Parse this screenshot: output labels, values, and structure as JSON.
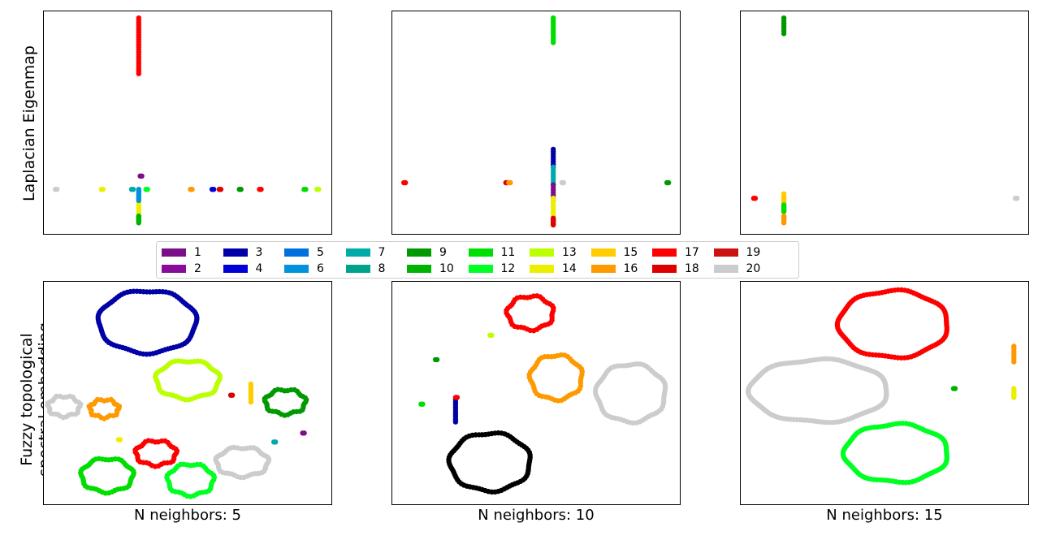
{
  "row_labels": {
    "top": "Laplacian Eigenmap",
    "bottom_line1": "Fuzzy topological",
    "bottom_line2": "spectral embedding"
  },
  "column_labels": [
    "N neighbors: 5",
    "N neighbors: 10",
    "N neighbors: 15"
  ],
  "legend": [
    {
      "label": "1",
      "color": "#7b0f8a"
    },
    {
      "label": "2",
      "color": "#8a0a9a"
    },
    {
      "label": "3",
      "color": "#0000a6"
    },
    {
      "label": "4",
      "color": "#0000d9"
    },
    {
      "label": "5",
      "color": "#0070dd"
    },
    {
      "label": "6",
      "color": "#0092dd"
    },
    {
      "label": "7",
      "color": "#00aaaa"
    },
    {
      "label": "8",
      "color": "#00a38a"
    },
    {
      "label": "9",
      "color": "#009900"
    },
    {
      "label": "10",
      "color": "#00b300"
    },
    {
      "label": "11",
      "color": "#00dd00"
    },
    {
      "label": "12",
      "color": "#00ff22"
    },
    {
      "label": "13",
      "color": "#bbff00"
    },
    {
      "label": "14",
      "color": "#eeee00"
    },
    {
      "label": "15",
      "color": "#ffcc00"
    },
    {
      "label": "16",
      "color": "#ff9900"
    },
    {
      "label": "17",
      "color": "#ff0000"
    },
    {
      "label": "18",
      "color": "#dd0000"
    },
    {
      "label": "19",
      "color": "#cc1111"
    },
    {
      "label": "20",
      "color": "#cccccc"
    }
  ],
  "chart_data": [
    {
      "type": "scatter",
      "row": "Laplacian Eigenmap",
      "xlabel": "",
      "ylabel": "Laplacian Eigenmap",
      "grid": false,
      "xlim": [
        0,
        1
      ],
      "ylim": [
        0,
        1
      ],
      "series": [
        {
          "class": 17,
          "shapes": [
            {
              "kind": "vline",
              "x": 0.33,
              "y0": 0.72,
              "y1": 0.97
            },
            {
              "kind": "point",
              "x": 0.75,
              "y": 0.2
            }
          ]
        },
        {
          "class": 20,
          "shapes": [
            {
              "kind": "point",
              "x": 0.04,
              "y": 0.2
            }
          ]
        },
        {
          "class": 14,
          "shapes": [
            {
              "kind": "point",
              "x": 0.2,
              "y": 0.2
            },
            {
              "kind": "vline",
              "x": 0.33,
              "y0": 0.06,
              "y1": 0.14
            }
          ]
        },
        {
          "class": 7,
          "shapes": [
            {
              "kind": "point",
              "x": 0.305,
              "y": 0.2
            }
          ]
        },
        {
          "class": 1,
          "shapes": [
            {
              "kind": "point",
              "x": 0.335,
              "y": 0.26
            }
          ]
        },
        {
          "class": 12,
          "shapes": [
            {
              "kind": "point",
              "x": 0.355,
              "y": 0.2
            }
          ]
        },
        {
          "class": 6,
          "shapes": [
            {
              "kind": "vline",
              "x": 0.33,
              "y0": 0.15,
              "y1": 0.2
            }
          ]
        },
        {
          "class": 10,
          "shapes": [
            {
              "kind": "vline",
              "x": 0.33,
              "y0": 0.05,
              "y1": 0.08
            }
          ]
        },
        {
          "class": 16,
          "shapes": [
            {
              "kind": "point",
              "x": 0.51,
              "y": 0.2
            }
          ]
        },
        {
          "class": 4,
          "shapes": [
            {
              "kind": "point",
              "x": 0.585,
              "y": 0.2
            }
          ]
        },
        {
          "class": 18,
          "shapes": [
            {
              "kind": "point",
              "x": 0.61,
              "y": 0.2
            }
          ]
        },
        {
          "class": 9,
          "shapes": [
            {
              "kind": "point",
              "x": 0.68,
              "y": 0.2
            }
          ]
        },
        {
          "class": 11,
          "shapes": [
            {
              "kind": "point",
              "x": 0.905,
              "y": 0.2
            }
          ]
        },
        {
          "class": 13,
          "shapes": [
            {
              "kind": "point",
              "x": 0.95,
              "y": 0.2
            }
          ]
        }
      ]
    },
    {
      "type": "scatter",
      "row": "Laplacian Eigenmap",
      "xlabel": "",
      "ylabel": "",
      "grid": false,
      "xlim": [
        0,
        1
      ],
      "ylim": [
        0,
        1
      ],
      "series": [
        {
          "class": 11,
          "shapes": [
            {
              "kind": "vline",
              "x": 0.56,
              "y0": 0.86,
              "y1": 0.97
            }
          ]
        },
        {
          "class": 3,
          "shapes": [
            {
              "kind": "vline",
              "x": 0.56,
              "y0": 0.3,
              "y1": 0.38
            }
          ]
        },
        {
          "class": 7,
          "shapes": [
            {
              "kind": "vline",
              "x": 0.56,
              "y0": 0.22,
              "y1": 0.3
            }
          ]
        },
        {
          "class": 1,
          "shapes": [
            {
              "kind": "vline",
              "x": 0.56,
              "y0": 0.15,
              "y1": 0.22
            }
          ]
        },
        {
          "class": 14,
          "shapes": [
            {
              "kind": "vline",
              "x": 0.56,
              "y0": 0.08,
              "y1": 0.16
            }
          ]
        },
        {
          "class": 18,
          "shapes": [
            {
              "kind": "vline",
              "x": 0.56,
              "y0": 0.04,
              "y1": 0.07
            }
          ]
        },
        {
          "class": 17,
          "shapes": [
            {
              "kind": "point",
              "x": 0.04,
              "y": 0.23
            }
          ]
        },
        {
          "class": 18,
          "shapes": [
            {
              "kind": "point",
              "x": 0.395,
              "y": 0.23
            }
          ]
        },
        {
          "class": 16,
          "shapes": [
            {
              "kind": "point",
              "x": 0.405,
              "y": 0.23
            }
          ]
        },
        {
          "class": 20,
          "shapes": [
            {
              "kind": "point",
              "x": 0.59,
              "y": 0.23
            }
          ]
        },
        {
          "class": 9,
          "shapes": [
            {
              "kind": "point",
              "x": 0.955,
              "y": 0.23
            }
          ]
        }
      ]
    },
    {
      "type": "scatter",
      "row": "Laplacian Eigenmap",
      "xlabel": "",
      "ylabel": "",
      "grid": false,
      "xlim": [
        0,
        1
      ],
      "ylim": [
        0,
        1
      ],
      "series": [
        {
          "class": 9,
          "shapes": [
            {
              "kind": "vline",
              "x": 0.15,
              "y0": 0.9,
              "y1": 0.97
            }
          ]
        },
        {
          "class": 17,
          "shapes": [
            {
              "kind": "point",
              "x": 0.045,
              "y": 0.16
            }
          ]
        },
        {
          "class": 15,
          "shapes": [
            {
              "kind": "vline",
              "x": 0.15,
              "y0": 0.13,
              "y1": 0.18
            }
          ]
        },
        {
          "class": 11,
          "shapes": [
            {
              "kind": "vline",
              "x": 0.15,
              "y0": 0.1,
              "y1": 0.13
            }
          ]
        },
        {
          "class": 16,
          "shapes": [
            {
              "kind": "vline",
              "x": 0.15,
              "y0": 0.05,
              "y1": 0.08
            }
          ]
        },
        {
          "class": 20,
          "shapes": [
            {
              "kind": "point",
              "x": 0.955,
              "y": 0.16
            }
          ]
        }
      ]
    },
    {
      "type": "scatter",
      "row": "Fuzzy topological spectral embedding",
      "xlabel": "N neighbors: 5",
      "ylabel": "Fuzzy topological spectral embedding",
      "grid": false,
      "xlim": [
        0,
        1
      ],
      "ylim": [
        0,
        1
      ],
      "series": [
        {
          "class": 3,
          "shapes": [
            {
              "kind": "ring",
              "x": 0.36,
              "y": 0.82,
              "rx": 0.17,
              "ry": 0.14
            }
          ]
        },
        {
          "class": 13,
          "shapes": [
            {
              "kind": "ring",
              "x": 0.5,
              "y": 0.56,
              "rx": 0.11,
              "ry": 0.085
            }
          ]
        },
        {
          "class": 9,
          "shapes": [
            {
              "kind": "ring",
              "x": 0.84,
              "y": 0.46,
              "rx": 0.07,
              "ry": 0.055
            }
          ]
        },
        {
          "class": 18,
          "shapes": [
            {
              "kind": "point",
              "x": 0.65,
              "y": 0.49
            }
          ]
        },
        {
          "class": 15,
          "shapes": [
            {
              "kind": "vline",
              "x": 0.72,
              "y0": 0.46,
              "y1": 0.54
            }
          ]
        },
        {
          "class": 1,
          "shapes": [
            {
              "kind": "point",
              "x": 0.9,
              "y": 0.32
            }
          ]
        },
        {
          "class": 7,
          "shapes": [
            {
              "kind": "point",
              "x": 0.8,
              "y": 0.28
            }
          ]
        },
        {
          "class": 20,
          "shapes": [
            {
              "kind": "ring",
              "x": 0.07,
              "y": 0.44,
              "rx": 0.055,
              "ry": 0.045
            }
          ]
        },
        {
          "class": 16,
          "shapes": [
            {
              "kind": "ring",
              "x": 0.21,
              "y": 0.43,
              "rx": 0.05,
              "ry": 0.04
            }
          ]
        },
        {
          "class": 14,
          "shapes": [
            {
              "kind": "point",
              "x": 0.26,
              "y": 0.29
            }
          ]
        },
        {
          "class": 17,
          "shapes": [
            {
              "kind": "ring",
              "x": 0.39,
              "y": 0.23,
              "rx": 0.07,
              "ry": 0.055
            }
          ]
        },
        {
          "class": 20,
          "shapes": [
            {
              "kind": "ring",
              "x": 0.69,
              "y": 0.19,
              "rx": 0.09,
              "ry": 0.065
            }
          ]
        },
        {
          "class": 11,
          "shapes": [
            {
              "kind": "ring",
              "x": 0.22,
              "y": 0.13,
              "rx": 0.09,
              "ry": 0.075
            }
          ]
        },
        {
          "class": 12,
          "shapes": [
            {
              "kind": "ring",
              "x": 0.51,
              "y": 0.11,
              "rx": 0.08,
              "ry": 0.07
            }
          ]
        }
      ]
    },
    {
      "type": "scatter",
      "row": "Fuzzy topological spectral embedding",
      "xlabel": "N neighbors: 10",
      "ylabel": "",
      "grid": false,
      "xlim": [
        0,
        1
      ],
      "ylim": [
        0,
        1
      ],
      "series": [
        {
          "class": 17,
          "shapes": [
            {
              "kind": "ring",
              "x": 0.48,
              "y": 0.86,
              "rx": 0.08,
              "ry": 0.075
            }
          ]
        },
        {
          "class": 13,
          "shapes": [
            {
              "kind": "point",
              "x": 0.34,
              "y": 0.76
            }
          ]
        },
        {
          "class": 9,
          "shapes": [
            {
              "kind": "point",
              "x": 0.15,
              "y": 0.65
            }
          ]
        },
        {
          "class": 16,
          "shapes": [
            {
              "kind": "ring",
              "x": 0.57,
              "y": 0.57,
              "rx": 0.09,
              "ry": 0.1
            }
          ]
        },
        {
          "class": 20,
          "shapes": [
            {
              "kind": "ring",
              "x": 0.83,
              "y": 0.5,
              "rx": 0.12,
              "ry": 0.13
            }
          ]
        },
        {
          "class": 11,
          "shapes": [
            {
              "kind": "point",
              "x": 0.1,
              "y": 0.45
            }
          ]
        },
        {
          "class": 3,
          "shapes": [
            {
              "kind": "vline",
              "x": 0.22,
              "y0": 0.37,
              "y1": 0.47
            }
          ]
        },
        {
          "class": 17,
          "shapes": [
            {
              "kind": "point",
              "x": 0.22,
              "y": 0.48
            }
          ]
        },
        {
          "class": 19,
          "shapes": [
            {
              "kind": "ring",
              "x": 0.34,
              "y": 0.19,
              "rx": 0.14,
              "ry": 0.13
            }
          ]
        }
      ]
    },
    {
      "type": "scatter",
      "row": "Fuzzy topological spectral embedding",
      "xlabel": "N neighbors: 15",
      "ylabel": "",
      "grid": false,
      "xlim": [
        0,
        1
      ],
      "ylim": [
        0,
        1
      ],
      "series": [
        {
          "class": 17,
          "shapes": [
            {
              "kind": "ring",
              "x": 0.53,
              "y": 0.81,
              "rx": 0.19,
              "ry": 0.15
            }
          ]
        },
        {
          "class": 20,
          "shapes": [
            {
              "kind": "ring",
              "x": 0.27,
              "y": 0.51,
              "rx": 0.24,
              "ry": 0.14
            }
          ]
        },
        {
          "class": 12,
          "shapes": [
            {
              "kind": "ring",
              "x": 0.54,
              "y": 0.23,
              "rx": 0.18,
              "ry": 0.13
            }
          ]
        },
        {
          "class": 10,
          "shapes": [
            {
              "kind": "point",
              "x": 0.74,
              "y": 0.52
            }
          ]
        },
        {
          "class": 16,
          "shapes": [
            {
              "kind": "vline",
              "x": 0.95,
              "y0": 0.64,
              "y1": 0.71
            }
          ]
        },
        {
          "class": 14,
          "shapes": [
            {
              "kind": "vline",
              "x": 0.95,
              "y0": 0.48,
              "y1": 0.52
            }
          ]
        }
      ]
    }
  ]
}
